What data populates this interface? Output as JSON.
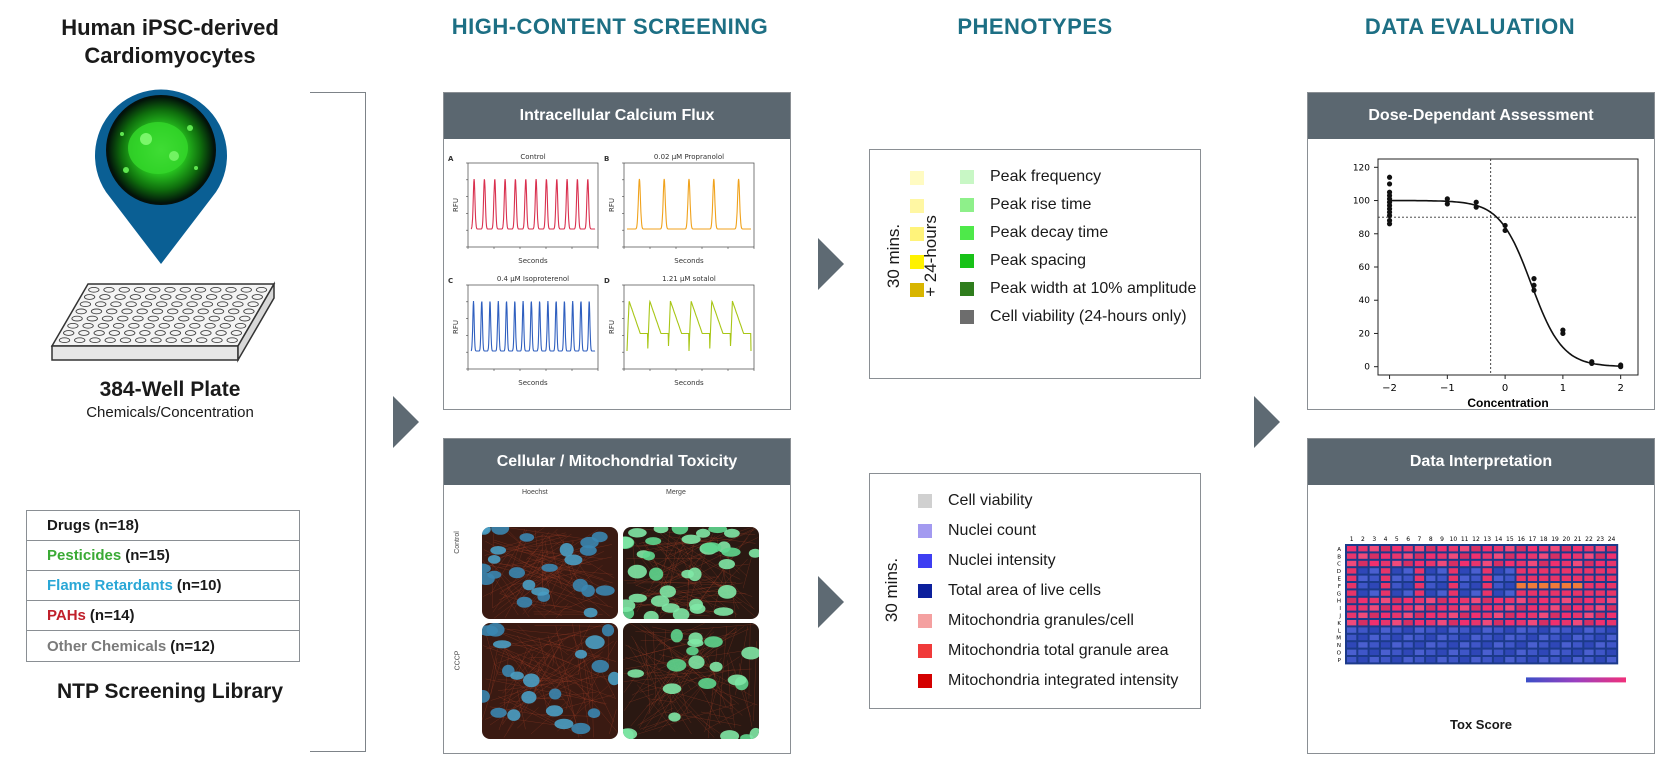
{
  "column1": {
    "title_line1": "Human iPSC-derived",
    "title_line2": "Cardiomyocytes",
    "plate_title": "384-Well Plate",
    "plate_subtitle": "Chemicals/Concentration",
    "library_title": "NTP Screening Library",
    "library": [
      {
        "name": "Drugs",
        "count": "(n=18)",
        "color": "#1a1a1a"
      },
      {
        "name": "Pesticides",
        "count": "(n=15)",
        "color": "#3aaa35"
      },
      {
        "name": "Flame Retardants",
        "count": "(n=10)",
        "color": "#2aa7d6"
      },
      {
        "name": "PAHs",
        "count": "(n=14)",
        "color": "#c0202b"
      },
      {
        "name": "Other Chemicals",
        "count": "(n=12)",
        "color": "#7a7a7a"
      }
    ]
  },
  "column2": {
    "header": "HIGH-CONTENT SCREENING",
    "panel1_title": "Intracellular Calcium Flux",
    "panel2_title": "Cellular / Mitochondrial Toxicity",
    "traces": [
      {
        "letter": "A",
        "title": "Control",
        "ylabel": "RFU",
        "xlabel": "Seconds"
      },
      {
        "letter": "B",
        "title": "0.02 μM Propranolol",
        "ylabel": "RFU",
        "xlabel": "Seconds"
      },
      {
        "letter": "C",
        "title": "0.4 μM Isoproterenol",
        "ylabel": "RFU",
        "xlabel": "Seconds"
      },
      {
        "letter": "D",
        "title": "1.21 μM sotalol",
        "ylabel": "RFU",
        "xlabel": "Seconds"
      }
    ],
    "micro_cols": [
      "Hoechst",
      "Merge"
    ],
    "micro_rows": [
      "Control",
      "CCCP"
    ]
  },
  "column3": {
    "header": "PHENOTYPES",
    "box1_vlabel_a": "30 mins.",
    "box1_vlabel_b": "+ 24-hours",
    "box1_items": [
      {
        "label": "Peak frequency",
        "left_color": "#fffbc2",
        "right_color": "#c8f7c5"
      },
      {
        "label": "Peak rise time",
        "left_color": "#fff7a3",
        "right_color": "#8ef08a"
      },
      {
        "label": "Peak decay time",
        "left_color": "#fff37a",
        "right_color": "#4ee94a"
      },
      {
        "label": "Peak spacing",
        "left_color": "#fff200",
        "right_color": "#18c218"
      },
      {
        "label": "Peak width at 10% amplitude",
        "left_color": "#d8b500",
        "right_color": "#2f7d1d"
      },
      {
        "label": "Cell viability (24-hours only)",
        "left_color": "",
        "right_color": "#6d6d6d"
      }
    ],
    "box2_vlabel": "30 mins.",
    "box2_items": [
      {
        "label": "Cell viability",
        "color": "#d0d0d0"
      },
      {
        "label": "Nuclei count",
        "color": "#a39af0"
      },
      {
        "label": "Nuclei intensity",
        "color": "#3e3ef2"
      },
      {
        "label": "Total area of live cells",
        "color": "#0c1f9c"
      },
      {
        "label": "Mitochondria granules/cell",
        "color": "#f4a0a0"
      },
      {
        "label": "Mitochondria total granule area",
        "color": "#f03a3a"
      },
      {
        "label": "Mitochondria integrated intensity",
        "color": "#d40000"
      }
    ]
  },
  "column4": {
    "header": "DATA EVALUATION",
    "panel1_title": "Dose-Dependant Assessment",
    "panel2_title": "Data Interpretation",
    "heatmap_caption": "Tox Score",
    "heatmap_cols": [
      "1",
      "2",
      "3",
      "4",
      "5",
      "6",
      "7",
      "8",
      "9",
      "10",
      "11",
      "12",
      "13",
      "14",
      "15",
      "16",
      "17",
      "18",
      "19",
      "20",
      "21",
      "22",
      "23",
      "24"
    ],
    "heatmap_rows": [
      "A",
      "B",
      "C",
      "D",
      "E",
      "F",
      "G",
      "H",
      "I",
      "J",
      "K",
      "L",
      "M",
      "N",
      "O",
      "P"
    ]
  },
  "chart_data": {
    "type": "scatter",
    "title": "",
    "xlabel": "Concentration",
    "ylabel": "",
    "xlim": [
      -2.2,
      2.3
    ],
    "ylim": [
      -5,
      125
    ],
    "xticks": [
      -2,
      -1,
      0,
      1,
      2
    ],
    "yticks": [
      0,
      20,
      40,
      60,
      80,
      100,
      120
    ],
    "threshold_y": 90,
    "threshold_x": -0.25,
    "points": [
      [
        -2,
        114
      ],
      [
        -2,
        110
      ],
      [
        -2,
        105
      ],
      [
        -2,
        103
      ],
      [
        -2,
        101
      ],
      [
        -2,
        99
      ],
      [
        -2,
        97
      ],
      [
        -2,
        95
      ],
      [
        -2,
        93
      ],
      [
        -2,
        91
      ],
      [
        -2,
        88
      ],
      [
        -2,
        86
      ],
      [
        -1,
        101
      ],
      [
        -1,
        98
      ],
      [
        -0.5,
        99
      ],
      [
        -0.5,
        96
      ],
      [
        0,
        85
      ],
      [
        0,
        82
      ],
      [
        0.5,
        53
      ],
      [
        0.5,
        49
      ],
      [
        0.5,
        46
      ],
      [
        1,
        22
      ],
      [
        1,
        20
      ],
      [
        1.5,
        3
      ],
      [
        1.5,
        2
      ],
      [
        2,
        1
      ],
      [
        2,
        0
      ]
    ],
    "curve": {
      "top": 100,
      "bottom": 0,
      "ec50": 0.45,
      "hill": 1.6
    }
  }
}
